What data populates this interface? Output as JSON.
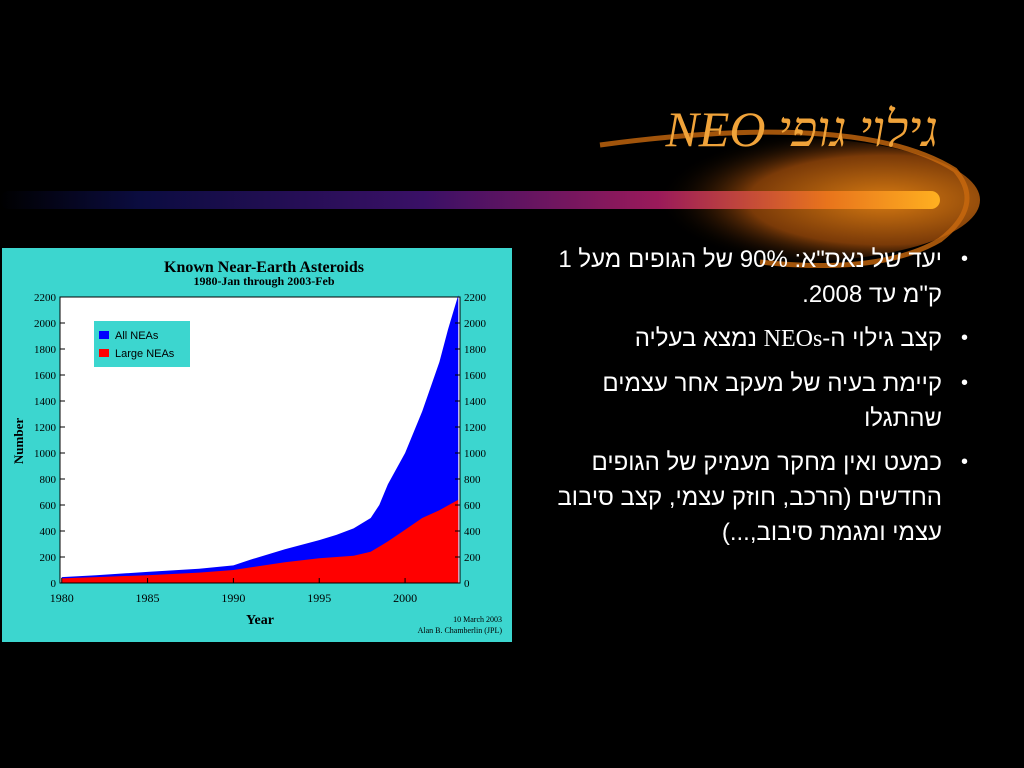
{
  "slide": {
    "title_he": "גילוי גופי",
    "title_neo": "NEO",
    "bullets": [
      {
        "parts": [
          {
            "text": "יעד של נאס\"א: 90% של הגופים מעל 1 ק\"מ עד 2008."
          }
        ]
      },
      {
        "parts": [
          {
            "text": "קצב גילוי ה-"
          },
          {
            "text": "NEOs",
            "serif": true
          },
          {
            "text": " נמצא בעליה"
          }
        ]
      },
      {
        "parts": [
          {
            "text": "קיימת בעיה של מעקב אחר עצמים שהתגלו"
          }
        ]
      },
      {
        "parts": [
          {
            "text": "כמעט ואין מחקר מעמיק של הגופים החדשים (הרכב, חוזק עצמי, קצב סיבוב עצמי ומגמת סיבוב,...)"
          }
        ]
      }
    ]
  },
  "colors": {
    "background": "#000000",
    "title": "#f0a33a",
    "text": "#ffffff",
    "chart_panel": "#3cd6cf",
    "all_neas": "#0000ff",
    "large_neas": "#ff0000"
  },
  "chart_data": {
    "type": "area",
    "title": "Known Near-Earth Asteroids",
    "subtitle": "1980-Jan through 2003-Feb",
    "xlabel": "Year",
    "ylabel": "Number",
    "xlim": [
      1979.9,
      2003.2
    ],
    "ylim": [
      0,
      2200
    ],
    "x_ticks": [
      1980,
      1985,
      1990,
      1995,
      2000
    ],
    "y_ticks": [
      0,
      200,
      400,
      600,
      800,
      1000,
      1200,
      1400,
      1600,
      1800,
      2000,
      2200
    ],
    "grid": false,
    "legend_position": "top-left",
    "footnote_date": "10 March 2003",
    "footnote_author": "Alan B. Chamberlin (JPL)",
    "series": [
      {
        "name": "All NEAs",
        "color": "#0000ff",
        "x": [
          1980,
          1982,
          1985,
          1988,
          1990,
          1991,
          1993,
          1995,
          1996,
          1997,
          1998,
          1998.5,
          1999,
          2000,
          2001,
          2002,
          2002.5,
          2003.1
        ],
        "y": [
          45,
          60,
          85,
          110,
          135,
          180,
          260,
          330,
          370,
          420,
          500,
          600,
          760,
          1000,
          1320,
          1700,
          1950,
          2250
        ]
      },
      {
        "name": "Large NEAs",
        "color": "#ff0000",
        "x": [
          1980,
          1982,
          1985,
          1988,
          1990,
          1991,
          1993,
          1995,
          1996,
          1997,
          1998,
          1999,
          2000,
          2001,
          2002,
          2003.1
        ],
        "y": [
          35,
          45,
          60,
          80,
          100,
          120,
          160,
          190,
          200,
          210,
          240,
          320,
          410,
          500,
          560,
          640
        ]
      }
    ]
  }
}
